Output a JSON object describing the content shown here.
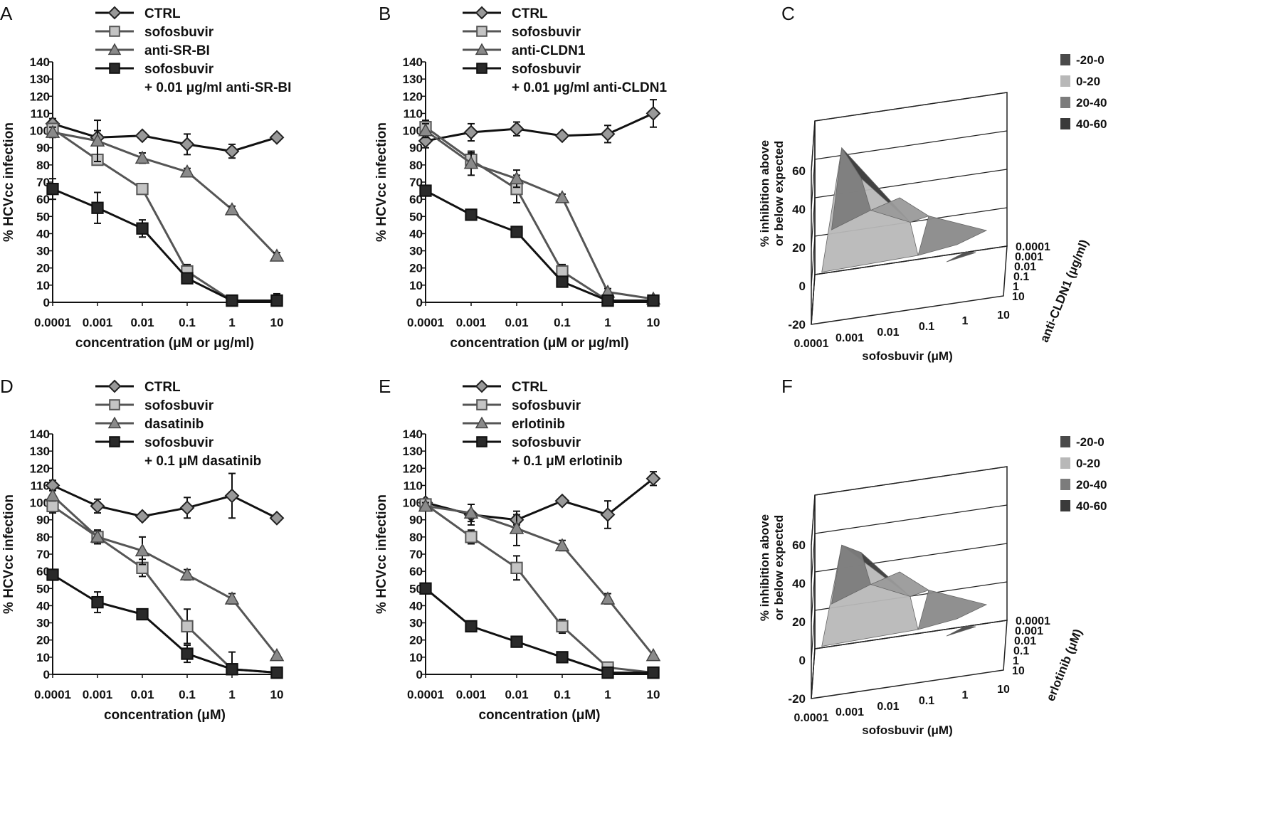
{
  "chart_data": [
    {
      "panel": "A",
      "type": "line",
      "x": [
        "0.0001",
        "0.001",
        "0.01",
        "0.1",
        "1",
        "10"
      ],
      "ylabel": "% HCVcc infection",
      "xlabel": "concentration (μM or μg/ml)",
      "ylim": [
        0,
        140
      ],
      "yticks": [
        0,
        10,
        20,
        30,
        40,
        50,
        60,
        70,
        80,
        90,
        100,
        110,
        120,
        130,
        140
      ],
      "series": [
        {
          "name": "CTRL",
          "marker": "diamond",
          "values": [
            104,
            96,
            97,
            92,
            88,
            96
          ],
          "err": [
            3,
            4,
            2,
            6,
            4,
            2
          ]
        },
        {
          "name": "sofosbuvir",
          "marker": "square-light",
          "values": [
            101,
            83,
            66,
            18,
            1,
            1
          ],
          "err": [
            3,
            3,
            2,
            4,
            1,
            1
          ]
        },
        {
          "name": "anti-SR-BI",
          "marker": "triangle",
          "values": [
            99,
            94,
            84,
            76,
            54,
            27
          ],
          "err": [
            3,
            12,
            3,
            2,
            2,
            2
          ]
        },
        {
          "name": "sofosbuvir",
          "name2": "+ 0.01 μg/ml anti-SR-BI",
          "marker": "square-dark",
          "values": [
            66,
            55,
            43,
            14,
            1,
            1
          ],
          "err": [
            6,
            9,
            5,
            2,
            1,
            4
          ]
        }
      ]
    },
    {
      "panel": "B",
      "type": "line",
      "x": [
        "0.0001",
        "0.001",
        "0.01",
        "0.1",
        "1",
        "10"
      ],
      "ylabel": "% HCVcc infection",
      "xlabel": "concentration (μM or μg/ml)",
      "ylim": [
        0,
        140
      ],
      "yticks": [
        0,
        10,
        20,
        30,
        40,
        50,
        60,
        70,
        80,
        90,
        100,
        110,
        120,
        130,
        140
      ],
      "series": [
        {
          "name": "CTRL",
          "marker": "diamond",
          "values": [
            94,
            99,
            101,
            97,
            98,
            110
          ],
          "err": [
            4,
            5,
            4,
            2,
            5,
            8
          ]
        },
        {
          "name": "sofosbuvir",
          "marker": "square-light",
          "values": [
            102,
            83,
            66,
            18,
            1,
            1
          ],
          "err": [
            4,
            4,
            8,
            4,
            1,
            1
          ]
        },
        {
          "name": "anti-CLDN1",
          "marker": "triangle",
          "values": [
            100,
            81,
            72,
            61,
            6,
            2
          ],
          "err": [
            4,
            7,
            5,
            2,
            2,
            1
          ]
        },
        {
          "name": "sofosbuvir",
          "name2": "+ 0.01 μg/ml anti-CLDN1",
          "marker": "square-dark",
          "values": [
            65,
            51,
            41,
            12,
            1,
            1
          ],
          "err": [
            2,
            2,
            2,
            2,
            1,
            1
          ]
        }
      ]
    },
    {
      "panel": "D",
      "type": "line",
      "x": [
        "0.0001",
        "0.001",
        "0.01",
        "0.1",
        "1",
        "10"
      ],
      "ylabel": "% HCVcc infection",
      "xlabel": "concentration (μM)",
      "ylim": [
        0,
        140
      ],
      "yticks": [
        0,
        10,
        20,
        30,
        40,
        50,
        60,
        70,
        80,
        90,
        100,
        110,
        120,
        130,
        140
      ],
      "series": [
        {
          "name": "CTRL",
          "marker": "diamond",
          "values": [
            110,
            98,
            92,
            97,
            104,
            91
          ],
          "err": [
            3,
            4,
            2,
            6,
            13,
            2
          ]
        },
        {
          "name": "sofosbuvir",
          "marker": "square-light",
          "values": [
            98,
            80,
            62,
            28,
            3,
            1
          ],
          "err": [
            4,
            4,
            5,
            10,
            10,
            1
          ]
        },
        {
          "name": "dasatinib",
          "marker": "triangle",
          "values": [
            104,
            80,
            72,
            58,
            44,
            11
          ],
          "err": [
            3,
            4,
            8,
            3,
            3,
            1
          ]
        },
        {
          "name": "sofosbuvir",
          "name2": "+ 0.1 μM dasatinib",
          "marker": "square-dark",
          "values": [
            58,
            42,
            35,
            12,
            3,
            1
          ],
          "err": [
            3,
            6,
            2,
            5,
            3,
            1
          ]
        }
      ]
    },
    {
      "panel": "E",
      "type": "line",
      "x": [
        "0.0001",
        "0.001",
        "0.01",
        "0.1",
        "1",
        "10"
      ],
      "ylabel": "% HCVcc infection",
      "xlabel": "concentration (μM)",
      "ylim": [
        0,
        140
      ],
      "yticks": [
        0,
        10,
        20,
        30,
        40,
        50,
        60,
        70,
        80,
        90,
        100,
        110,
        120,
        130,
        140
      ],
      "series": [
        {
          "name": "CTRL",
          "marker": "diamond",
          "values": [
            100,
            93,
            90,
            101,
            93,
            114
          ],
          "err": [
            2,
            6,
            3,
            2,
            8,
            4
          ]
        },
        {
          "name": "sofosbuvir",
          "marker": "square-light",
          "values": [
            99,
            80,
            62,
            28,
            4,
            1
          ],
          "err": [
            2,
            4,
            7,
            4,
            2,
            1
          ]
        },
        {
          "name": "erlotinib",
          "marker": "triangle",
          "values": [
            98,
            94,
            85,
            75,
            44,
            11
          ],
          "err": [
            2,
            5,
            10,
            3,
            3,
            1
          ]
        },
        {
          "name": "sofosbuvir",
          "name2": "+ 0.1 μM erlotinib",
          "marker": "square-dark",
          "values": [
            50,
            28,
            19,
            10,
            1,
            1
          ],
          "err": [
            2,
            2,
            2,
            2,
            1,
            1
          ]
        }
      ]
    },
    {
      "panel": "C",
      "type": "surface3d",
      "zlabel1": "% inhibition above",
      "zlabel2": "or below expected",
      "zticks": [
        "60",
        "40",
        "20",
        "0",
        "-20"
      ],
      "xlabel": "sofosbuvir (μM)",
      "xticks": [
        "0.0001",
        "0.001",
        "0.01",
        "0.1",
        "1",
        "10"
      ],
      "ylabel": "anti-CLDN1 (μg/ml)",
      "yticks": [
        "0.0001",
        "0.001",
        "0.01",
        "0.1",
        "1",
        "10"
      ],
      "legend": [
        {
          "label": "-20-0",
          "color": "#4a4a4a"
        },
        {
          "label": "0-20",
          "color": "#b8b8b8"
        },
        {
          "label": "20-40",
          "color": "#7c7c7c"
        },
        {
          "label": "40-60",
          "color": "#3a3a3a"
        }
      ]
    },
    {
      "panel": "F",
      "type": "surface3d",
      "zlabel1": "% inhibition above",
      "zlabel2": "or below expected",
      "zticks": [
        "60",
        "40",
        "20",
        "0",
        "-20"
      ],
      "xlabel": "sofosbuvir (μM)",
      "xticks": [
        "0.0001",
        "0.001",
        "0.01",
        "0.1",
        "1",
        "10"
      ],
      "ylabel": "erlotinib (μM)",
      "yticks": [
        "0.0001",
        "0.001",
        "0.01",
        "0.1",
        "1",
        "10"
      ],
      "legend": [
        {
          "label": "-20-0",
          "color": "#4a4a4a"
        },
        {
          "label": "0-20",
          "color": "#b8b8b8"
        },
        {
          "label": "20-40",
          "color": "#7c7c7c"
        },
        {
          "label": "40-60",
          "color": "#3a3a3a"
        }
      ]
    }
  ]
}
